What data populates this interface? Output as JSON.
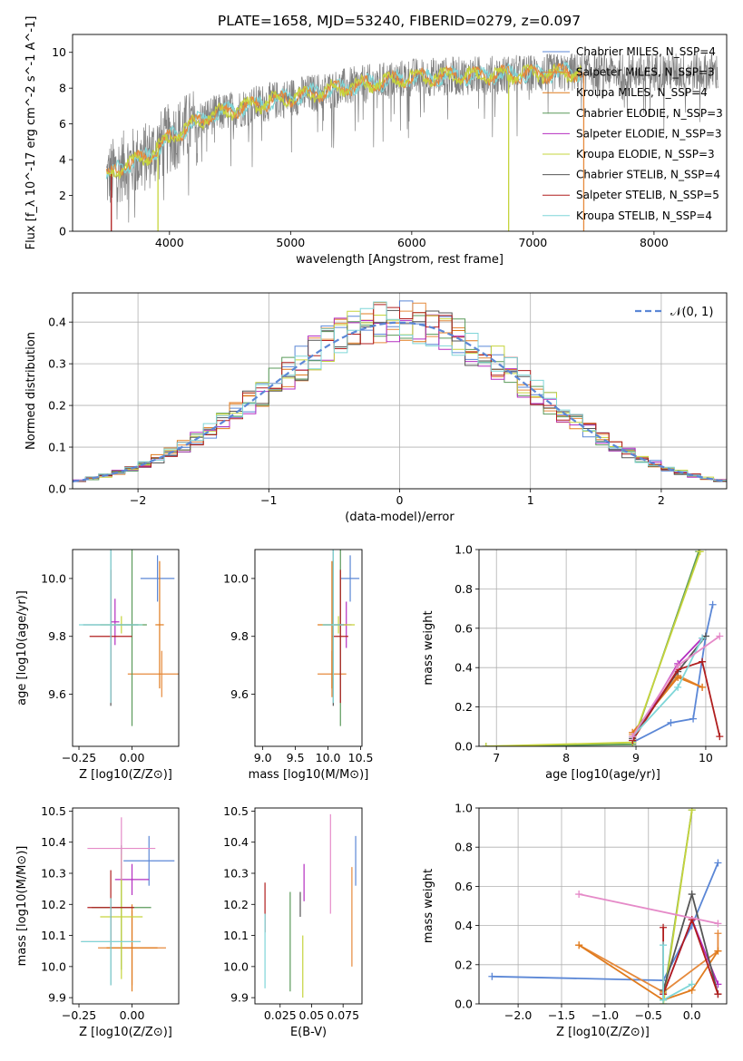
{
  "page_title": "PLATE=1658, MJD=53240, FIBERID=0279, z=0.097",
  "colors": {
    "Chabrier MILES": "#5b87d6",
    "Salpeter MILES": "#e68a3c",
    "Kroupa MILES": "#e07b1d",
    "Chabrier ELODIE": "#5a9a5a",
    "Salpeter ELODIE": "#b42ec0",
    "Kroupa ELODIE": "#c6d43c",
    "Chabrier STELIB": "#555555",
    "Salpeter STELIB": "#b01e1e",
    "Kroupa STELIB": "#7fd6d8",
    "normal": "#5b87d6",
    "hist_pink": "#e58ac8",
    "hist_gray": "#999999"
  },
  "chart_data": [
    {
      "id": "spectrum",
      "type": "line",
      "title": "PLATE=1658, MJD=53240, FIBERID=0279, z=0.097",
      "xlabel": "wavelength [Angstrom, rest frame]",
      "ylabel": "Flux [f_λ 10^-17 erg cm^-2 s^-1 A^-1]",
      "xlim": [
        3200,
        8600
      ],
      "ylim": [
        0,
        11
      ],
      "xticks": [
        4000,
        5000,
        6000,
        7000,
        8000
      ],
      "yticks": [
        0,
        2,
        4,
        6,
        8,
        10
      ],
      "legend_position": "right",
      "legend": [
        {
          "label": "Chabrier MILES",
          "nssp": "N_SSP=4"
        },
        {
          "label": "Salpeter MILES",
          "nssp": "N_SSP=3"
        },
        {
          "label": "Kroupa MILES",
          "nssp": "N_SSP=4"
        },
        {
          "label": "Chabrier ELODIE",
          "nssp": "N_SSP=3"
        },
        {
          "label": "Salpeter ELODIE",
          "nssp": "N_SSP=3"
        },
        {
          "label": "Kroupa ELODIE",
          "nssp": "N_SSP=3"
        },
        {
          "label": "Chabrier STELIB",
          "nssp": "N_SSP=4"
        },
        {
          "label": "Salpeter STELIB",
          "nssp": "N_SSP=5"
        },
        {
          "label": "Kroupa STELIB",
          "nssp": "N_SSP=4"
        }
      ],
      "continuum_x": [
        3480,
        3600,
        3800,
        4000,
        4300,
        4600,
        5000,
        5500,
        6000,
        6500,
        7000,
        7400
      ],
      "continuum_y": [
        3.0,
        3.6,
        4.1,
        5.2,
        6.4,
        6.9,
        7.5,
        8.1,
        8.6,
        8.7,
        8.8,
        8.9
      ],
      "dropouts": [
        {
          "x": 3520,
          "color": "Salpeter STELIB"
        },
        {
          "x": 3905,
          "color": "Kroupa ELODIE"
        },
        {
          "x": 6800,
          "color": "Kroupa ELODIE"
        },
        {
          "x": 7420,
          "color": "Salpeter MILES"
        }
      ]
    },
    {
      "id": "residuals",
      "type": "line",
      "xlabel": "(data-model)/error",
      "ylabel": "Normed distribution",
      "xlim": [
        -2.5,
        2.5
      ],
      "ylim": [
        0,
        0.47
      ],
      "xticks": [
        -2,
        -1,
        0,
        1,
        2
      ],
      "yticks": [
        0.0,
        0.1,
        0.2,
        0.3,
        0.4
      ],
      "grid": true,
      "legend_label": "𝒩(0, 1)",
      "legend_position": "top-right",
      "bin_width": 0.1,
      "histogram_series": [
        "Chabrier MILES",
        "Salpeter MILES",
        "Kroupa MILES",
        "Chabrier ELODIE",
        "Salpeter ELODIE",
        "Kroupa ELODIE",
        "Chabrier STELIB",
        "Salpeter STELIB",
        "Kroupa STELIB"
      ]
    },
    {
      "id": "age_vs_Z",
      "type": "scatter",
      "xlabel": "Z [log10(Z/Z⊙)]",
      "ylabel": "age [log10(age/yr)]",
      "xlim": [
        -0.28,
        0.22
      ],
      "ylim": [
        9.42,
        10.1
      ],
      "xticks": [
        -0.25,
        0.0
      ],
      "yticks": [
        9.6,
        9.8,
        10.0
      ],
      "points": [
        {
          "series": "Chabrier MILES",
          "x": 0.12,
          "xerr": 0.08,
          "y": 10.0,
          "yerr": 0.08
        },
        {
          "series": "Salpeter MILES",
          "x": 0.14,
          "xerr": 0.16,
          "y": 9.67,
          "yerr": 0.08
        },
        {
          "series": "Kroupa MILES",
          "x": 0.13,
          "xerr": 0.02,
          "y": 9.84,
          "yerr": 0.22
        },
        {
          "series": "Chabrier ELODIE",
          "x": 0.0,
          "xerr": 0.07,
          "y": 9.84,
          "yerr": 0.35
        },
        {
          "series": "Salpeter ELODIE",
          "x": -0.08,
          "xerr": 0.02,
          "y": 9.85,
          "yerr": 0.08
        },
        {
          "series": "Kroupa ELODIE",
          "x": -0.05,
          "xerr": 0.1,
          "y": 9.84,
          "yerr": 0.03
        },
        {
          "series": "Chabrier STELIB",
          "x": -0.1,
          "xerr": 0.13,
          "y": 9.84,
          "yerr": 0.28
        },
        {
          "series": "Salpeter STELIB",
          "x": -0.1,
          "xerr": 0.1,
          "y": 9.8,
          "yerr": 0.23
        },
        {
          "series": "Kroupa STELIB",
          "x": -0.1,
          "xerr": 0.15,
          "y": 9.84,
          "yerr": 0.27
        }
      ]
    },
    {
      "id": "age_vs_mass",
      "type": "scatter",
      "xlabel": "mass [log10(M/M⊙)]",
      "ylabel": "",
      "xlim": [
        8.88,
        10.52
      ],
      "ylim": [
        9.42,
        10.1
      ],
      "xticks": [
        9.0,
        9.5,
        10.0,
        10.5
      ],
      "yticks": [
        9.6,
        9.8,
        10.0
      ],
      "points": [
        {
          "series": "Chabrier MILES",
          "x": 10.34,
          "xerr": 0.14,
          "y": 10.0,
          "yerr": 0.08
        },
        {
          "series": "Salpeter MILES",
          "x": 10.06,
          "xerr": 0.22,
          "y": 9.67,
          "yerr": 0.08
        },
        {
          "series": "Kroupa MILES",
          "x": 10.06,
          "xerr": 0.22,
          "y": 9.84,
          "yerr": 0.22
        },
        {
          "series": "Chabrier ELODIE",
          "x": 10.19,
          "xerr": 0.02,
          "y": 9.84,
          "yerr": 0.35
        },
        {
          "series": "Salpeter ELODIE",
          "x": 10.28,
          "xerr": 0.08,
          "y": 9.84,
          "yerr": 0.08
        },
        {
          "series": "Kroupa ELODIE",
          "x": 10.16,
          "xerr": 0.25,
          "y": 9.84,
          "yerr": 0.03
        },
        {
          "series": "Chabrier STELIB",
          "x": 10.08,
          "xerr": 0.16,
          "y": 9.84,
          "yerr": 0.28
        },
        {
          "series": "Salpeter STELIB",
          "x": 10.19,
          "xerr": 0.12,
          "y": 9.8,
          "yerr": 0.23
        },
        {
          "series": "Kroupa STELIB",
          "x": 10.08,
          "xerr": 0.16,
          "y": 9.84,
          "yerr": 0.27
        }
      ]
    },
    {
      "id": "weight_vs_age",
      "type": "line",
      "xlabel": "age [log10(age/yr)]",
      "ylabel": "mass weight",
      "xlim": [
        6.75,
        10.3
      ],
      "ylim": [
        0,
        1
      ],
      "xticks": [
        7,
        8,
        9,
        10
      ],
      "yticks": [
        0.0,
        0.2,
        0.4,
        0.6,
        0.8,
        1.0
      ],
      "grid": true,
      "series": [
        {
          "name": "Chabrier MILES",
          "x": [
            8.95,
            9.5,
            9.82,
            10.0,
            10.1
          ],
          "y": [
            0.02,
            0.12,
            0.14,
            0.56,
            0.72
          ]
        },
        {
          "name": "Salpeter MILES",
          "x": [
            8.95,
            9.6,
            9.95
          ],
          "y": [
            0.06,
            0.36,
            0.3
          ]
        },
        {
          "name": "Kroupa MILES",
          "x": [
            8.95,
            9.6,
            9.95
          ],
          "y": [
            0.07,
            0.35,
            0.3
          ]
        },
        {
          "name": "Chabrier ELODIE",
          "x": [
            6.85,
            8.95,
            9.9
          ],
          "y": [
            0.0,
            0.01,
            0.99
          ]
        },
        {
          "name": "Salpeter ELODIE",
          "x": [
            8.95,
            9.6,
            9.95
          ],
          "y": [
            0.03,
            0.42,
            0.55
          ]
        },
        {
          "name": "Kroupa ELODIE",
          "x": [
            6.85,
            8.95,
            9.92
          ],
          "y": [
            0.0,
            0.02,
            0.99
          ]
        },
        {
          "name": "Chabrier STELIB",
          "x": [
            8.95,
            9.6,
            10.0
          ],
          "y": [
            0.04,
            0.38,
            0.56
          ]
        },
        {
          "name": "Salpeter STELIB",
          "x": [
            8.95,
            9.6,
            9.95,
            10.2
          ],
          "y": [
            0.03,
            0.39,
            0.43,
            0.05
          ]
        },
        {
          "name": "Kroupa STELIB",
          "x": [
            8.95,
            9.6,
            9.95
          ],
          "y": [
            0.05,
            0.3,
            0.55
          ]
        },
        {
          "name": "hist_pink",
          "x": [
            8.95,
            9.6,
            10.2
          ],
          "y": [
            0.05,
            0.41,
            0.56
          ]
        }
      ]
    },
    {
      "id": "mass_vs_Z",
      "type": "scatter",
      "xlabel": "Z [log10(Z/Z⊙)]",
      "ylabel": "mass [log10(M/M⊙)]",
      "xlim": [
        -0.28,
        0.22
      ],
      "ylim": [
        9.88,
        10.51
      ],
      "xticks": [
        -0.25,
        0.0
      ],
      "yticks": [
        9.9,
        10.0,
        10.1,
        10.2,
        10.3,
        10.4,
        10.5
      ],
      "points": [
        {
          "series": "Chabrier MILES",
          "x": 0.08,
          "xerr": 0.12,
          "y": 10.34,
          "yerr": 0.08
        },
        {
          "series": "Salpeter MILES",
          "x": 0.0,
          "xerr": 0.16,
          "y": 10.06,
          "yerr": 0.12
        },
        {
          "series": "Kroupa MILES",
          "x": 0.0,
          "xerr": 0.12,
          "y": 10.06,
          "yerr": 0.14
        },
        {
          "series": "Chabrier ELODIE",
          "x": -0.05,
          "xerr": 0.14,
          "y": 10.19,
          "yerr": 0.2
        },
        {
          "series": "Salpeter ELODIE",
          "x": 0.0,
          "xerr": 0.08,
          "y": 10.28,
          "yerr": 0.05
        },
        {
          "series": "Kroupa ELODIE",
          "x": -0.05,
          "xerr": 0.1,
          "y": 10.16,
          "yerr": 0.2
        },
        {
          "series": "Chabrier STELIB",
          "x": -0.1,
          "xerr": 0.14,
          "y": 10.08,
          "yerr": 0.14
        },
        {
          "series": "Salpeter STELIB",
          "x": -0.1,
          "xerr": 0.11,
          "y": 10.19,
          "yerr": 0.12
        },
        {
          "series": "Kroupa STELIB",
          "x": -0.1,
          "xerr": 0.14,
          "y": 10.08,
          "yerr": 0.14
        },
        {
          "series": "hist_pink",
          "x": -0.05,
          "xerr": 0.16,
          "y": 10.38,
          "yerr": 0.1
        }
      ]
    },
    {
      "id": "mass_vs_ebv",
      "type": "scatter",
      "xlabel": "E(B-V)",
      "ylabel": "",
      "xlim": [
        0.005,
        0.09
      ],
      "ylim": [
        9.88,
        10.51
      ],
      "xticks": [
        0.025,
        0.05,
        0.075
      ],
      "yticks": [
        9.9,
        10.0,
        10.1,
        10.2,
        10.3,
        10.4,
        10.5
      ],
      "points": [
        {
          "series": "Chabrier MILES",
          "x": 0.085,
          "xerr": 0,
          "y": 10.34,
          "yerr": 0.08
        },
        {
          "series": "Salpeter MILES",
          "x": 0.082,
          "xerr": 0,
          "y": 10.16,
          "yerr": 0.16
        },
        {
          "series": "Chabrier ELODIE",
          "x": 0.033,
          "xerr": 0,
          "y": 10.08,
          "yerr": 0.16
        },
        {
          "series": "Salpeter ELODIE",
          "x": 0.044,
          "xerr": 0,
          "y": 10.27,
          "yerr": 0.06
        },
        {
          "series": "Kroupa ELODIE",
          "x": 0.043,
          "xerr": 0,
          "y": 10.0,
          "yerr": 0.1
        },
        {
          "series": "Chabrier STELIB",
          "x": 0.041,
          "xerr": 0,
          "y": 10.2,
          "yerr": 0.04
        },
        {
          "series": "Salpeter STELIB",
          "x": 0.013,
          "xerr": 0,
          "y": 10.19,
          "yerr": 0.08
        },
        {
          "series": "Kroupa STELIB",
          "x": 0.013,
          "xerr": 0,
          "y": 10.05,
          "yerr": 0.12
        },
        {
          "series": "hist_pink",
          "x": 0.065,
          "xerr": 0,
          "y": 10.33,
          "yerr": 0.16
        }
      ]
    },
    {
      "id": "weight_vs_Z",
      "type": "line",
      "xlabel": "Z [log10(Z/Z⊙)]",
      "ylabel": "mass weight",
      "xlim": [
        -2.45,
        0.4
      ],
      "ylim": [
        0,
        1
      ],
      "xticks": [
        -2.0,
        -1.5,
        -1.0,
        -0.5,
        0.0
      ],
      "yticks": [
        0.0,
        0.2,
        0.4,
        0.6,
        0.8,
        1.0
      ],
      "grid": true,
      "series": [
        {
          "name": "Chabrier MILES",
          "x": [
            -2.3,
            -0.33,
            0.0,
            0.3
          ],
          "y": [
            0.14,
            0.12,
            0.4,
            0.72
          ]
        },
        {
          "name": "Salpeter MILES",
          "x": [
            -1.3,
            -0.33,
            0.3,
            0.3
          ],
          "y": [
            0.3,
            0.06,
            0.27,
            0.36
          ]
        },
        {
          "name": "Kroupa MILES",
          "x": [
            -1.3,
            -0.33,
            0.0,
            0.3
          ],
          "y": [
            0.3,
            0.02,
            0.07,
            0.27
          ]
        },
        {
          "name": "Chabrier ELODIE",
          "x": [
            -0.33,
            0.0
          ],
          "y": [
            0.02,
            0.99
          ]
        },
        {
          "name": "Salpeter ELODIE",
          "x": [
            -0.33,
            0.0,
            0.3
          ],
          "y": [
            0.05,
            0.43,
            0.1
          ]
        },
        {
          "name": "Kroupa ELODIE",
          "x": [
            -0.33,
            0.0
          ],
          "y": [
            0.0,
            0.99
          ]
        },
        {
          "name": "Chabrier STELIB",
          "x": [
            -0.33,
            0.0,
            0.3
          ],
          "y": [
            0.07,
            0.56,
            0.05
          ]
        },
        {
          "name": "Salpeter STELIB",
          "x": [
            -0.33,
            -0.33,
            0.0,
            0.3
          ],
          "y": [
            0.39,
            0.05,
            0.43,
            0.05
          ]
        },
        {
          "name": "Kroupa STELIB",
          "x": [
            -0.33,
            -0.33,
            0.0
          ],
          "y": [
            0.3,
            0.02,
            0.1
          ]
        },
        {
          "name": "hist_pink",
          "x": [
            -1.3,
            0.3
          ],
          "y": [
            0.56,
            0.41
          ]
        }
      ]
    }
  ]
}
